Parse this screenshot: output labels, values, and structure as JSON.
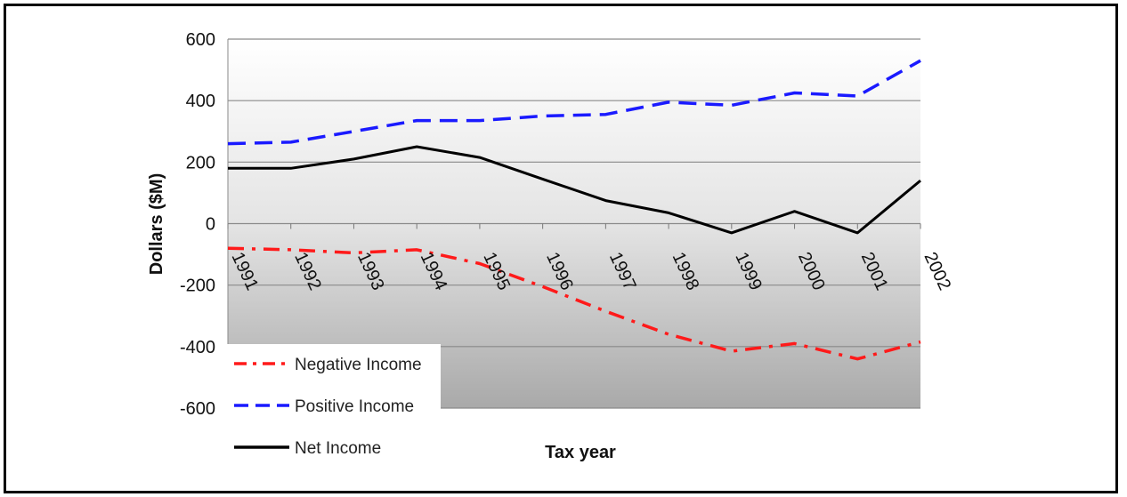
{
  "chart_data": {
    "type": "line",
    "xlabel": "Tax year",
    "ylabel": "Dollars ($M)",
    "categories": [
      "1991",
      "1992",
      "1993",
      "1994",
      "1995",
      "1996",
      "1997",
      "1998",
      "1999",
      "2000",
      "2001",
      "2002"
    ],
    "ylim": [
      -600,
      600
    ],
    "yticks": [
      "600",
      "400",
      "200",
      "0",
      "-200",
      "-400",
      "-600"
    ],
    "grid": true,
    "legend_placement": "bottom-left",
    "series": [
      {
        "name": "Negative Income",
        "color": "#ff1a1a",
        "dash": "dash-dot",
        "values": [
          -80,
          -85,
          -95,
          -85,
          -130,
          -205,
          -285,
          -360,
          -415,
          -390,
          -440,
          -385
        ]
      },
      {
        "name": "Positive Income",
        "color": "#1a1aff",
        "dash": "dash",
        "values": [
          260,
          265,
          300,
          335,
          335,
          350,
          355,
          395,
          385,
          425,
          415,
          530
        ]
      },
      {
        "name": "Net Income",
        "color": "#000000",
        "dash": "solid",
        "values": [
          180,
          180,
          210,
          250,
          215,
          145,
          75,
          35,
          -30,
          40,
          -30,
          140
        ]
      }
    ]
  }
}
